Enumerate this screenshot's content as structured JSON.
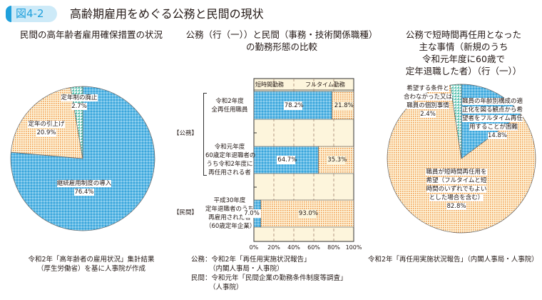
{
  "header": {
    "figure_no": "図4-2",
    "title": "高齢期雇用をめぐる公務と民間の現状"
  },
  "colors": {
    "blue": "#3aa6dc",
    "orange": "#f29a4a",
    "green": "#5cc4b2",
    "cream": "#fdf5dc",
    "badge": "#1fa0dc"
  },
  "chart_data": [
    {
      "type": "pie",
      "title": "民間の高年齢者雇用確保措置の状況",
      "start": "top",
      "direction": "clockwise",
      "slices": [
        {
          "label": "継続雇用制度の導入",
          "value": 76.4,
          "color": "blue"
        },
        {
          "label": "定年の引上げ",
          "value": 20.9,
          "color": "orange"
        },
        {
          "label": "定年制の廃止",
          "value": 2.7,
          "color": "green"
        }
      ],
      "value_labels": [
        "76.4%",
        "20.9%",
        "2.7%"
      ],
      "source": [
        "令和2年「高年齢者の雇用状況」集計結果",
        "（厚生労働省）を基に人事院が作成"
      ]
    },
    {
      "type": "bar",
      "orientation": "horizontal",
      "stacked": true,
      "title_lines": [
        "公務（行（一））と民間（事務・技術関係職種）",
        "の勤務形態の比較"
      ],
      "legend": [
        "短時間勤務",
        "フルタイム勤務"
      ],
      "legend_placement": "top",
      "groups": [
        "【公務】",
        "【民間】"
      ],
      "categories": [
        [
          "令和2年度",
          "全再任用職員"
        ],
        [
          "令和元年度",
          "60歳定年退職者の",
          "うち令和2年度に",
          "再任用される者"
        ],
        [
          "平成30年度",
          "定年退職者のうち",
          "再雇用された者",
          "（60歳定年企業）"
        ]
      ],
      "series": [
        {
          "name": "短時間勤務",
          "values": [
            78.2,
            64.7,
            7.0
          ],
          "labels": [
            "78.2%",
            "64.7%",
            "7.0%"
          ]
        },
        {
          "name": "フルタイム勤務",
          "values": [
            21.8,
            35.3,
            93.0
          ],
          "labels": [
            "21.8%",
            "35.3%",
            "93.0%"
          ]
        }
      ],
      "xlim": [
        0,
        100
      ],
      "xticks": [
        "0%",
        "20%",
        "40%",
        "60%",
        "80%",
        "100%"
      ],
      "grid": "vertical dashed",
      "source": [
        {
          "k": "公務：",
          "lines": [
            "令和2年「再任用実施状況報告」",
            "（内閣人事局・人事院）"
          ]
        },
        {
          "k": "民間：",
          "lines": [
            "令和元年「民間企業の勤務条件制度等調査」",
            "（人事院）"
          ]
        }
      ]
    },
    {
      "type": "pie",
      "title_lines": [
        "公務で短時間再任用となった",
        "主な事情（新規のうち",
        "令和元年度に60歳で",
        "定年退職した者）（行（一））"
      ],
      "start": "top",
      "direction": "clockwise",
      "slices": [
        {
          "label": "職員の年齢別構成の適正化を図る観点から希望者をフルタイム再任用することが困難",
          "value": 14.8,
          "color": "blue"
        },
        {
          "label": "職員が短時間再任用を希望（フルタイムと短時間のいずれでもよいとした場合を含む）",
          "value": 82.8,
          "color": "orange"
        },
        {
          "label": "希望する条件と合わなかった又は職員の個別事情",
          "value": 2.4,
          "color": "green"
        }
      ],
      "label_lines": {
        "blue": [
          "職員の年齢別構成の適",
          "正化を図る観点から希",
          "望者をフルタイム再任",
          "用することが困難"
        ],
        "orange": [
          "職員が短時間再任用を",
          "希望（フルタイムと短",
          "時間のいずれでもよい",
          "とした場合を含む）"
        ],
        "green": [
          "希望する条件と",
          "合わなかった又は",
          "職員の個別事情"
        ]
      },
      "value_labels": [
        "14.8%",
        "82.8%",
        "2.4%"
      ],
      "source": [
        "令和2年「再任用実施状況報告」（内閣人事局・人事院）"
      ]
    }
  ]
}
